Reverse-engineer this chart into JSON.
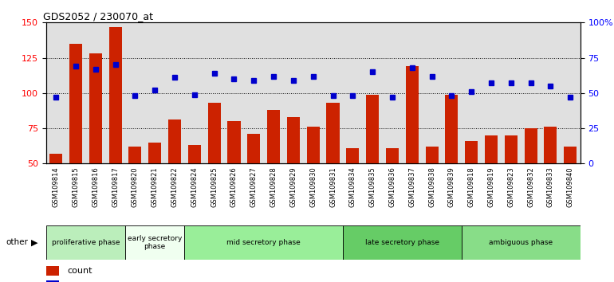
{
  "title": "GDS2052 / 230070_at",
  "samples": [
    "GSM109814",
    "GSM109815",
    "GSM109816",
    "GSM109817",
    "GSM109820",
    "GSM109821",
    "GSM109822",
    "GSM109824",
    "GSM109825",
    "GSM109826",
    "GSM109827",
    "GSM109828",
    "GSM109829",
    "GSM109830",
    "GSM109831",
    "GSM109834",
    "GSM109835",
    "GSM109836",
    "GSM109837",
    "GSM109838",
    "GSM109839",
    "GSM109818",
    "GSM109819",
    "GSM109823",
    "GSM109832",
    "GSM109833",
    "GSM109840"
  ],
  "bar_values": [
    57,
    135,
    128,
    147,
    62,
    65,
    81,
    63,
    93,
    80,
    71,
    88,
    83,
    76,
    93,
    61,
    99,
    61,
    119,
    62,
    99,
    66,
    70,
    70,
    75,
    76,
    62
  ],
  "percentile_values": [
    47,
    69,
    67,
    70,
    48,
    52,
    61,
    49,
    64,
    60,
    59,
    62,
    59,
    62,
    48,
    48,
    65,
    47,
    68,
    62,
    48,
    51,
    57,
    57,
    57,
    55,
    47
  ],
  "phases": [
    {
      "label": "proliferative phase",
      "start": 0,
      "end": 3,
      "color": "#bbeebb"
    },
    {
      "label": "early secretory\nphase",
      "start": 4,
      "end": 6,
      "color": "#f0fff0"
    },
    {
      "label": "mid secretory phase",
      "start": 7,
      "end": 14,
      "color": "#99ee99"
    },
    {
      "label": "late secretory phase",
      "start": 15,
      "end": 20,
      "color": "#66cc66"
    },
    {
      "label": "ambiguous phase",
      "start": 21,
      "end": 26,
      "color": "#88dd88"
    }
  ],
  "ylim_left": [
    50,
    150
  ],
  "ylim_right": [
    0,
    100
  ],
  "bar_color": "#cc2200",
  "dot_color": "#0000cc",
  "bg_color": "#e0e0e0",
  "tick_area_color": "#cccccc"
}
